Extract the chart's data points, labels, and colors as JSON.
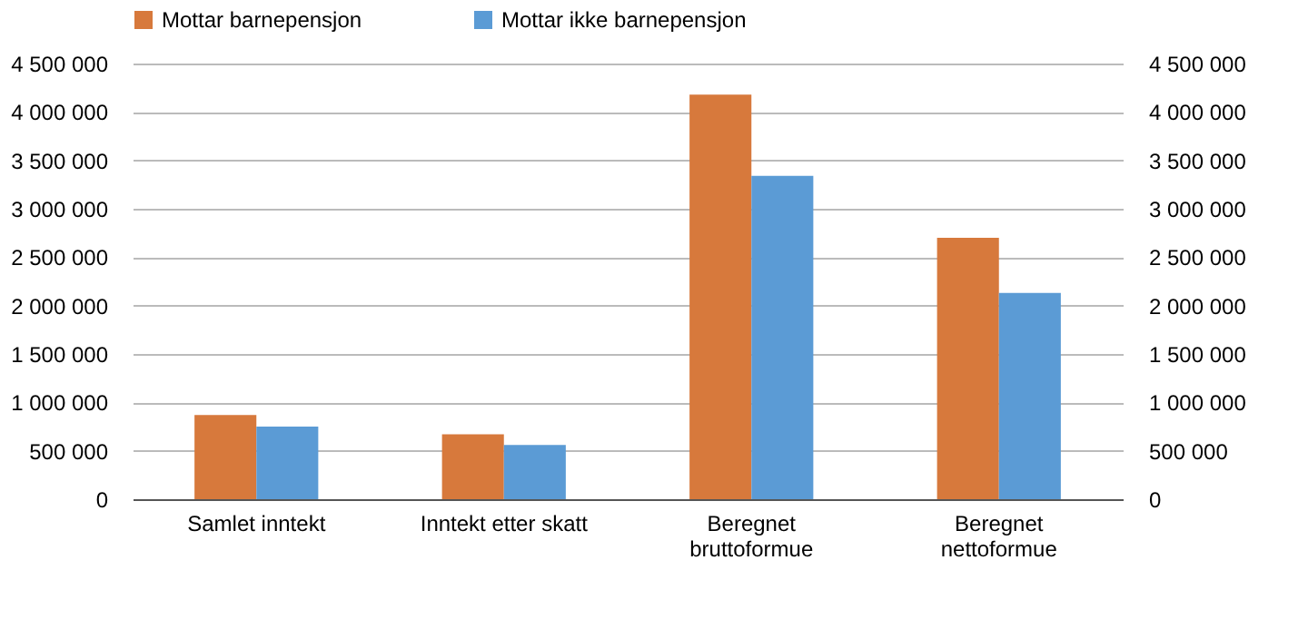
{
  "chart_data": {
    "type": "bar",
    "categories": [
      "Samlet inntekt",
      "Inntekt etter skatt",
      "Beregnet\nbruttoformue",
      "Beregnet\nnettoformue"
    ],
    "series": [
      {
        "name": "Mottar barnepensjon",
        "color": "#d7793c",
        "values": [
          870000,
          670000,
          4180000,
          2700000
        ]
      },
      {
        "name": "Mottar ikke barnepensjon",
        "color": "#5b9bd5",
        "values": [
          750000,
          560000,
          3340000,
          2130000
        ]
      }
    ],
    "ylim": [
      0,
      4500000
    ],
    "yticks": [
      0,
      {
        "value": 500000,
        "label": "500 000"
      },
      {
        "value": 1000000,
        "label": "1 000 000"
      },
      {
        "value": 1500000,
        "label": "1 500 000"
      },
      {
        "value": 2000000,
        "label": "2 000 000"
      },
      {
        "value": 2500000,
        "label": "2 500 000"
      },
      {
        "value": 3000000,
        "label": "3 000 000"
      },
      {
        "value": 3500000,
        "label": "3 500 000"
      },
      {
        "value": 4000000,
        "label": "4 000 000"
      },
      {
        "value": 4500000,
        "label": "4 500 000"
      }
    ],
    "y2lim": [
      0,
      4500000
    ],
    "y2ticks": [
      0,
      {
        "value": 500000,
        "label": "500 000"
      },
      {
        "value": 1000000,
        "label": "1 000 000"
      },
      {
        "value": 1500000,
        "label": "1 500 000"
      },
      {
        "value": 2000000,
        "label": "2 000 000"
      },
      {
        "value": 2500000,
        "label": "2 500 000"
      },
      {
        "value": 3000000,
        "label": "3 000 000"
      },
      {
        "value": 3500000,
        "label": "3 500 000"
      },
      {
        "value": 4000000,
        "label": "4 000 000"
      },
      {
        "value": 4500000,
        "label": "4 500 000"
      }
    ],
    "grid": "y",
    "legend": "top"
  }
}
